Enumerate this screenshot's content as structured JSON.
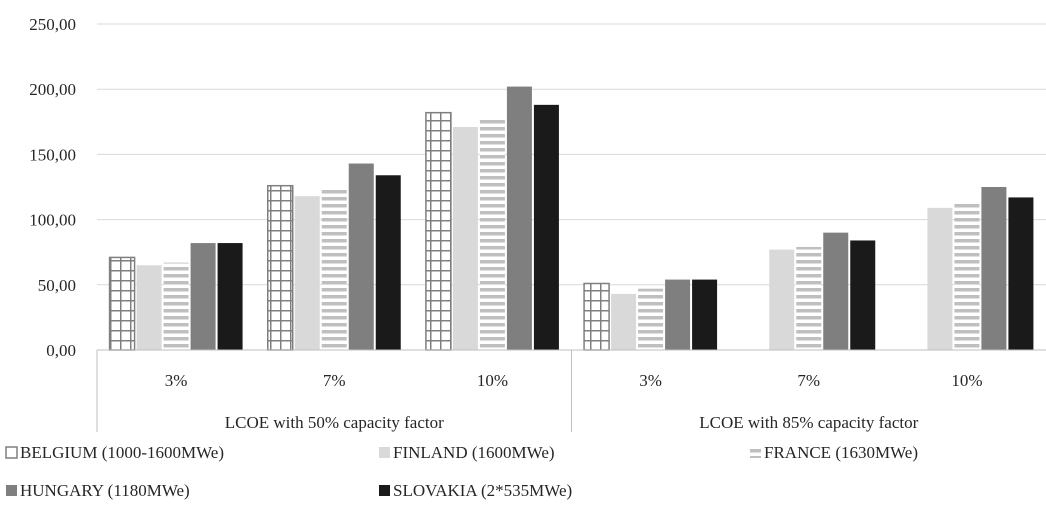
{
  "chart_data": {
    "type": "bar",
    "groups": [
      {
        "label": "LCOE with 50% capacity factor",
        "categories": [
          "3%",
          "7%",
          "10%"
        ]
      },
      {
        "label": "LCOE with 85% capacity factor",
        "categories": [
          "3%",
          "7%",
          "10%"
        ]
      }
    ],
    "categories": [
      "3%",
      "7%",
      "10%",
      "3%",
      "7%",
      "10%"
    ],
    "series": [
      {
        "name": "BELGIUM (1000-1600MWe)",
        "values": [
          71,
          126,
          182,
          51,
          null,
          null
        ],
        "color": "#7f7f7f",
        "pattern": "grid"
      },
      {
        "name": "FINLAND (1600MWe)",
        "values": [
          65,
          118,
          171,
          43,
          77,
          109
        ],
        "color": "#d9d9d9",
        "pattern": "solid"
      },
      {
        "name": "FRANCE (1630MWe)",
        "values": [
          67,
          125,
          177,
          47,
          79,
          112
        ],
        "color": "#bfbfbf",
        "pattern": "hstripe"
      },
      {
        "name": "HUNGARY (1180MWe)",
        "values": [
          82,
          143,
          202,
          54,
          90,
          125
        ],
        "color": "#7f7f7f",
        "pattern": "solid"
      },
      {
        "name": "SLOVAKIA (2*535MWe)",
        "values": [
          82,
          134,
          188,
          54,
          84,
          117
        ],
        "color": "#1a1a1a",
        "pattern": "solid"
      }
    ],
    "ylim": [
      0,
      250
    ],
    "yticks": [
      "0,00",
      "50,00",
      "100,00",
      "150,00",
      "200,00",
      "250,00"
    ],
    "grid": true,
    "legend": "bottom",
    "title": "",
    "xlabel": "",
    "ylabel": ""
  }
}
